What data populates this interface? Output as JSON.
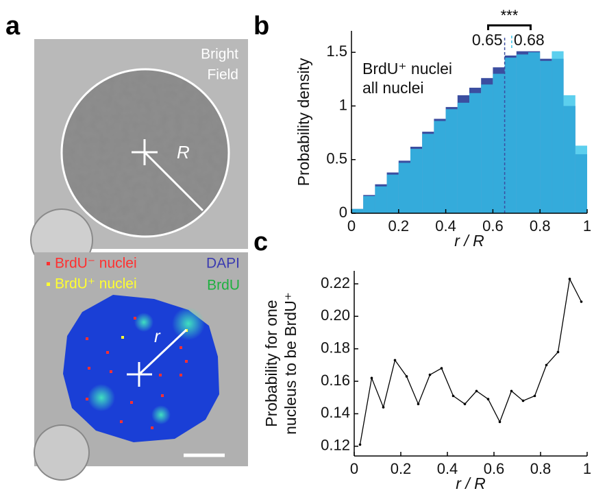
{
  "panel_a": {
    "label": "a",
    "bright_field": [
      "Bright",
      "Field"
    ],
    "radius_label": "R",
    "legend": [
      {
        "text": "BrdU⁻ nuclei",
        "color": "#ff3030"
      },
      {
        "text": "BrdU⁺ nuclei",
        "color": "#ffff30"
      }
    ],
    "channels": [
      {
        "text": "DAPI",
        "color": "#3a3ab0"
      },
      {
        "text": "BrdU",
        "color": "#1fb040"
      }
    ],
    "r_label": "r"
  },
  "chart_data": [
    {
      "type": "histogram",
      "label": "b",
      "xlabel": "r / R",
      "ylabel": "Probability density",
      "bins": [
        0,
        0.05,
        0.1,
        0.15,
        0.2,
        0.25,
        0.3,
        0.35,
        0.4,
        0.45,
        0.5,
        0.55,
        0.6,
        0.65,
        0.7,
        0.75,
        0.8,
        0.85,
        0.9,
        0.95,
        1
      ],
      "series": [
        {
          "name": "BrdU⁺ nuclei",
          "color": "#33c3ea",
          "values": [
            0.04,
            0.16,
            0.25,
            0.36,
            0.47,
            0.6,
            0.74,
            0.86,
            0.97,
            1.03,
            1.12,
            1.2,
            1.3,
            1.45,
            1.48,
            1.5,
            1.42,
            1.51,
            1.1,
            0.63
          ]
        },
        {
          "name": "all nuclei",
          "color": "#3b4ea0",
          "values": [
            0.04,
            0.17,
            0.27,
            0.38,
            0.49,
            0.62,
            0.76,
            0.88,
            0.99,
            1.1,
            1.17,
            1.26,
            1.36,
            1.47,
            1.51,
            1.51,
            1.44,
            1.44,
            1.0,
            0.55
          ]
        }
      ],
      "medians": [
        {
          "label": "0.65",
          "value": 0.65,
          "color": "#3b4ea0"
        },
        {
          "label": "0.68",
          "value": 0.68,
          "color": "#33c3ea"
        }
      ],
      "significance": {
        "label": "***",
        "range": [
          0.58,
          0.76
        ]
      },
      "xlim": [
        0,
        1
      ],
      "ylim": [
        0,
        1.7
      ],
      "xticks": [
        0,
        0.2,
        0.4,
        0.6,
        0.8,
        1
      ],
      "yticks": [
        0,
        0.5,
        1,
        1.5
      ],
      "legend": "upper-left"
    },
    {
      "type": "line",
      "label": "c",
      "xlabel": "r / R",
      "ylabel": [
        "Probability for one",
        "nucleus to be BrdU⁺"
      ],
      "color": "#000000",
      "x": [
        0.025,
        0.075,
        0.125,
        0.175,
        0.225,
        0.275,
        0.325,
        0.375,
        0.425,
        0.475,
        0.525,
        0.575,
        0.625,
        0.675,
        0.725,
        0.775,
        0.825,
        0.875,
        0.925,
        0.975
      ],
      "values": [
        0.121,
        0.162,
        0.144,
        0.173,
        0.163,
        0.146,
        0.164,
        0.168,
        0.151,
        0.146,
        0.154,
        0.149,
        0.135,
        0.154,
        0.148,
        0.151,
        0.17,
        0.178,
        0.223,
        0.209
      ],
      "xlim": [
        0,
        1
      ],
      "ylim": [
        0.114,
        0.228
      ],
      "xticks": [
        0,
        0.2,
        0.4,
        0.6,
        0.8,
        1
      ],
      "yticks": [
        0.12,
        0.14,
        0.16,
        0.18,
        {
          "value": 0.2,
          "label": "0.20"
        },
        0.22
      ]
    }
  ]
}
